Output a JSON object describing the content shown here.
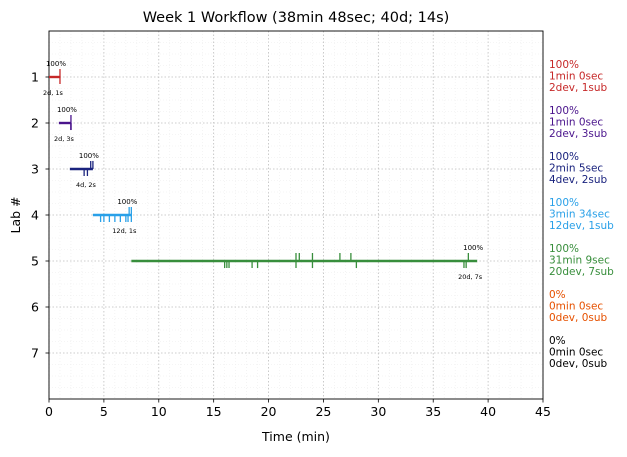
{
  "chart_data": {
    "type": "timeline",
    "title": "Week 1 Workflow (38min 48sec; 40d; 14s)",
    "xlabel": "Time (min)",
    "ylabel": "Lab #",
    "xlim": [
      0,
      45
    ],
    "ylim": [
      8,
      0
    ],
    "x_ticks": [
      0,
      5,
      10,
      15,
      20,
      25,
      30,
      35,
      40,
      45
    ],
    "grid": true,
    "labs": [
      {
        "lab": 1,
        "start": 0.0,
        "end": 1.0,
        "color": "#c62828",
        "dev_ticks": [
          1.0
        ],
        "sub_ticks": [
          1.0
        ],
        "pct_label": "100%",
        "count_label": "2d, 1s",
        "summary": [
          "100%",
          "1min 0sec",
          "2dev, 1sub"
        ]
      },
      {
        "lab": 2,
        "start": 0.9,
        "end": 2.0,
        "color": "#4a148c",
        "dev_ticks": [
          2.0
        ],
        "sub_ticks": [
          2.0,
          2.0,
          2.0
        ],
        "pct_label": "100%",
        "count_label": "2d, 3s",
        "summary": [
          "100%",
          "1min 0sec",
          "2dev, 3sub"
        ]
      },
      {
        "lab": 3,
        "start": 1.9,
        "end": 4.0,
        "color": "#1a237e",
        "dev_ticks": [
          3.8,
          4.0
        ],
        "sub_ticks": [
          3.2,
          3.5
        ],
        "pct_label": "100%",
        "count_label": "4d, 2s",
        "summary": [
          "100%",
          "2min 5sec",
          "4dev, 2sub"
        ]
      },
      {
        "lab": 4,
        "start": 4.0,
        "end": 7.5,
        "color": "#29a0e8",
        "dev_ticks": [
          7.3,
          7.5
        ],
        "sub_ticks": [
          4.7,
          5.0,
          5.5,
          6.0,
          6.5,
          7.0,
          7.2,
          7.5
        ],
        "pct_label": "100%",
        "count_label": "12d, 1s",
        "summary": [
          "100%",
          "3min 34sec",
          "12dev, 1sub"
        ]
      },
      {
        "lab": 5,
        "start": 7.5,
        "end": 39.0,
        "color": "#388e3c",
        "dev_ticks": [
          22.5,
          22.8,
          24.0,
          26.5,
          27.5,
          38.2
        ],
        "sub_ticks": [
          16.0,
          16.2,
          16.4,
          18.5,
          19.0,
          22.5,
          24.0,
          28.0,
          37.8,
          38.0
        ],
        "pct_label": "100%",
        "count_label": "20d, 7s",
        "summary": [
          "100%",
          "31min 9sec",
          "20dev, 7sub"
        ]
      },
      {
        "lab": 6,
        "start": null,
        "end": null,
        "color": "#e65100",
        "dev_ticks": [],
        "sub_ticks": [],
        "pct_label": "",
        "count_label": "",
        "summary": [
          "0%",
          "0min 0sec",
          "0dev, 0sub"
        ]
      },
      {
        "lab": 7,
        "start": null,
        "end": null,
        "color": "#000000",
        "dev_ticks": [],
        "sub_ticks": [],
        "pct_label": "",
        "count_label": "",
        "summary": [
          "0%",
          "0min 0sec",
          "0dev, 0sub"
        ]
      }
    ]
  }
}
